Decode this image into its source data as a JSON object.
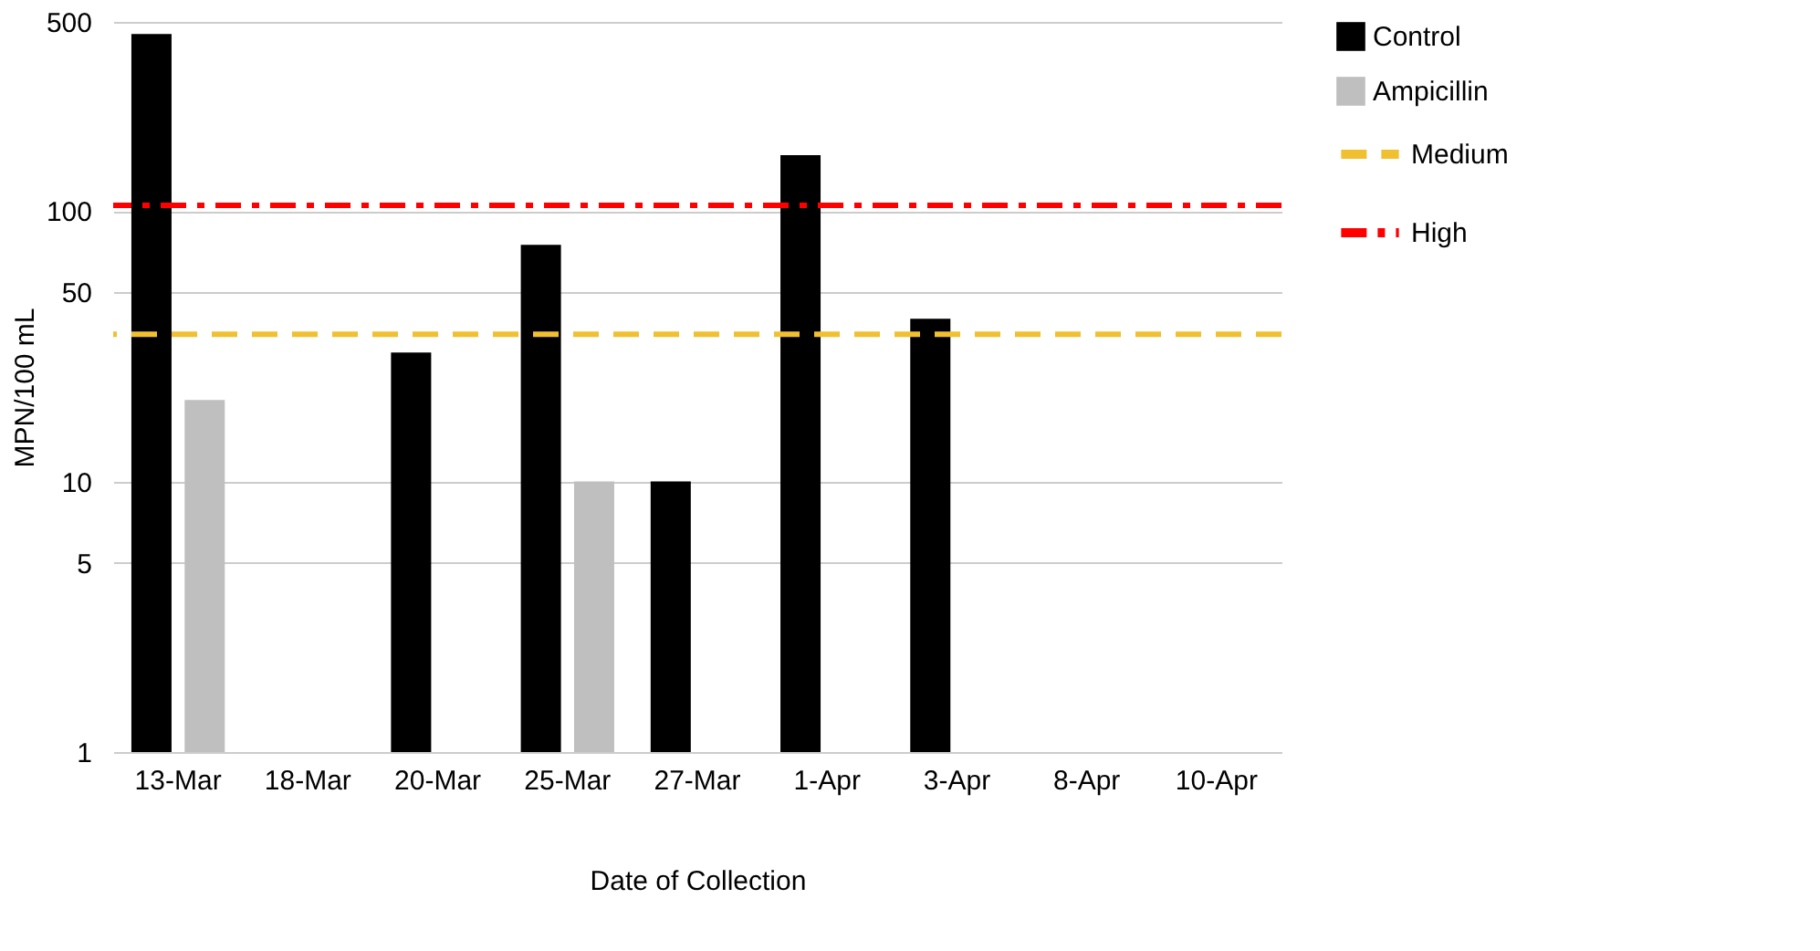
{
  "chart_data": {
    "type": "bar",
    "xlabel": "Date of Collection",
    "ylabel": "MPN/100 mL",
    "categories": [
      "13-Mar",
      "18-Mar",
      "20-Mar",
      "25-Mar",
      "27-Mar",
      "1-Apr",
      "3-Apr",
      "8-Apr",
      "10-Apr"
    ],
    "series": [
      {
        "name": "Control",
        "color": "#000000",
        "values": [
          451,
          null,
          30,
          75,
          10,
          161,
          40,
          null,
          null
        ]
      },
      {
        "name": "Ampicillin",
        "color": "#bfbfbf",
        "values": [
          20,
          null,
          null,
          10,
          null,
          null,
          null,
          null,
          null
        ]
      }
    ],
    "ref_lines": [
      {
        "axis": "y",
        "value": 35,
        "label": "Medium",
        "color": "#f0c030",
        "line_style": "dashed"
      },
      {
        "axis": "y",
        "value": 105,
        "label": "High",
        "color": "#ff0000",
        "line_style": "dashdot"
      }
    ],
    "log": true,
    "ylim": [
      1,
      500
    ],
    "yticks": [
      1,
      5,
      10,
      50,
      100,
      500
    ],
    "grid": "y",
    "legend": "top right"
  }
}
